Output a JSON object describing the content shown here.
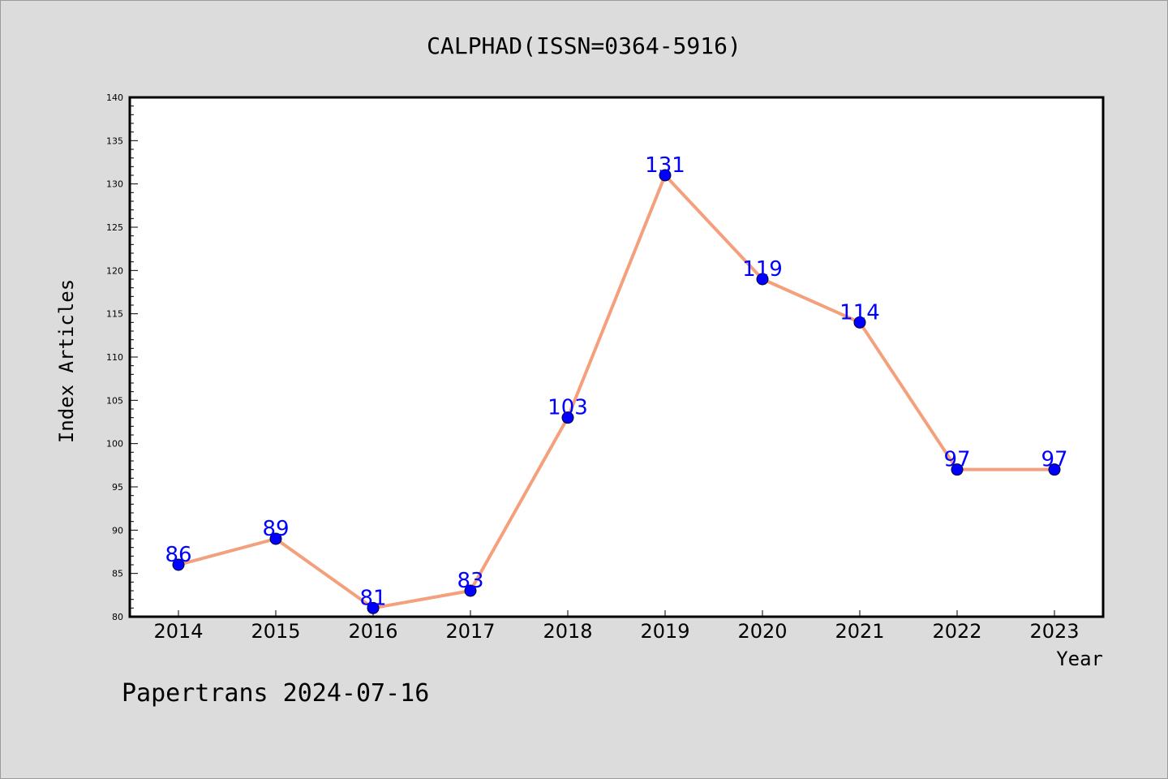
{
  "chart_data": {
    "type": "line",
    "title": "CALPHAD(ISSN=0364-5916)",
    "xlabel": "Year",
    "ylabel": "Index Articles",
    "categories": [
      "2014",
      "2015",
      "2016",
      "2017",
      "2018",
      "2019",
      "2020",
      "2021",
      "2022",
      "2023"
    ],
    "values": [
      86,
      89,
      81,
      83,
      103,
      131,
      119,
      114,
      97,
      97
    ],
    "ylim": [
      80,
      140
    ],
    "yticks": [
      80,
      85,
      90,
      95,
      100,
      105,
      110,
      115,
      120,
      125,
      130,
      135,
      140
    ],
    "grid": false,
    "colors": {
      "line": "#f4a07c",
      "marker": "#0000ff",
      "data_label": "#0000ff",
      "background": "#dcdcdc",
      "plot_bg": "#ffffff"
    }
  },
  "footer": "Papertrans 2024-07-16"
}
